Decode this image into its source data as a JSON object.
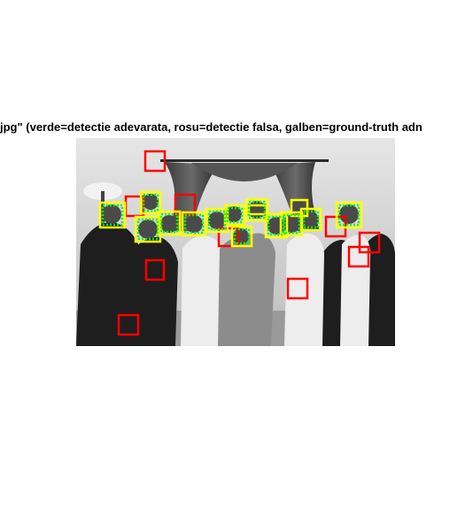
{
  "figure": {
    "title": "jpg\" (verde=detectie adevarata, rosu=detectie falsa, galben=ground-truth adn"
  },
  "colors": {
    "true_detection": "#00ff00",
    "false_detection": "#ff0000",
    "ground_truth": "#ffff00",
    "background": "#ffffff"
  },
  "boxes": {
    "false_detections": 10,
    "true_detections": 13,
    "ground_truth": 15
  }
}
